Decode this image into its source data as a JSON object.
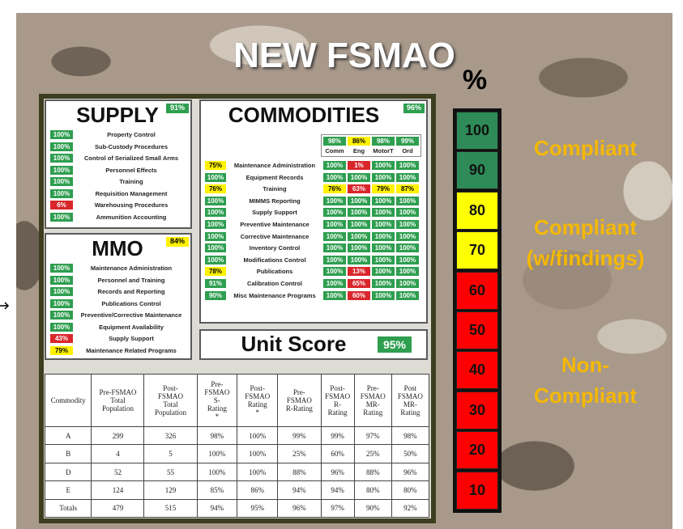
{
  "title": "NEW FSMAO",
  "percent_sign": "%",
  "supply": {
    "title": "SUPPLY",
    "score": "91%",
    "color": "green",
    "items": [
      {
        "score": "100%",
        "label": "Property Control",
        "color": "green"
      },
      {
        "score": "100%",
        "label": "Sub-Custody Procedures",
        "color": "green"
      },
      {
        "score": "100%",
        "label": "Control of Serialized Small Arms",
        "color": "green"
      },
      {
        "score": "100%",
        "label": "Personnel Effects",
        "color": "green"
      },
      {
        "score": "100%",
        "label": "Training",
        "color": "green"
      },
      {
        "score": "100%",
        "label": "Requisition Management",
        "color": "green"
      },
      {
        "score": "6%",
        "label": "Warehousing Procedures",
        "color": "red"
      },
      {
        "score": "100%",
        "label": "Ammunition Accounting",
        "color": "green"
      }
    ]
  },
  "mmo": {
    "title": "MMO",
    "score": "84%",
    "color": "yellow",
    "items": [
      {
        "score": "100%",
        "label": "Maintenance Administration",
        "color": "green"
      },
      {
        "score": "100%",
        "label": "Personnel and Training",
        "color": "green"
      },
      {
        "score": "100%",
        "label": "Records and Reporting",
        "color": "green"
      },
      {
        "score": "100%",
        "label": "Publications Control",
        "color": "green"
      },
      {
        "score": "100%",
        "label": "Preventive/Corrective Maintenance",
        "color": "green"
      },
      {
        "score": "100%",
        "label": "Equipment Availability",
        "color": "green"
      },
      {
        "score": "43%",
        "label": "Supply Support",
        "color": "red"
      },
      {
        "score": "79%",
        "label": "Maintenance Related Programs",
        "color": "yellow"
      }
    ]
  },
  "commodities": {
    "title": "COMMODITIES",
    "score": "96%",
    "color": "green",
    "columns": [
      {
        "score": "98%",
        "label": "Comm",
        "color": "green"
      },
      {
        "score": "86%",
        "label": "Eng",
        "color": "yellow"
      },
      {
        "score": "98%",
        "label": "MotorT",
        "color": "green"
      },
      {
        "score": "99%",
        "label": "Ord",
        "color": "green"
      }
    ],
    "rows": [
      {
        "score": "75%",
        "label": "Maintenance Administration",
        "color": "yellow",
        "values": [
          "100%",
          "1%",
          "100%",
          "100%"
        ],
        "colors": [
          "green",
          "red",
          "green",
          "green"
        ]
      },
      {
        "score": "100%",
        "label": "Equipment Records",
        "color": "green",
        "values": [
          "100%",
          "100%",
          "100%",
          "100%"
        ],
        "colors": [
          "green",
          "green",
          "green",
          "green"
        ]
      },
      {
        "score": "76%",
        "label": "Training",
        "color": "yellow",
        "values": [
          "76%",
          "63%",
          "79%",
          "87%"
        ],
        "colors": [
          "yellow",
          "red",
          "yellow",
          "yellow"
        ]
      },
      {
        "score": "100%",
        "label": "MIMMS Reporting",
        "color": "green",
        "values": [
          "100%",
          "100%",
          "100%",
          "100%"
        ],
        "colors": [
          "green",
          "green",
          "green",
          "green"
        ]
      },
      {
        "score": "100%",
        "label": "Supply Support",
        "color": "green",
        "values": [
          "100%",
          "100%",
          "100%",
          "100%"
        ],
        "colors": [
          "green",
          "green",
          "green",
          "green"
        ]
      },
      {
        "score": "100%",
        "label": "Preventive Maintenance",
        "color": "green",
        "values": [
          "100%",
          "100%",
          "100%",
          "100%"
        ],
        "colors": [
          "green",
          "green",
          "green",
          "green"
        ]
      },
      {
        "score": "100%",
        "label": "Corrective Maintenance",
        "color": "green",
        "values": [
          "100%",
          "100%",
          "100%",
          "100%"
        ],
        "colors": [
          "green",
          "green",
          "green",
          "green"
        ]
      },
      {
        "score": "100%",
        "label": "Inventory Control",
        "color": "green",
        "values": [
          "100%",
          "100%",
          "100%",
          "100%"
        ],
        "colors": [
          "green",
          "green",
          "green",
          "green"
        ]
      },
      {
        "score": "100%",
        "label": "Modifications Control",
        "color": "green",
        "values": [
          "100%",
          "100%",
          "100%",
          "100%"
        ],
        "colors": [
          "green",
          "green",
          "green",
          "green"
        ]
      },
      {
        "score": "78%",
        "label": "Publications",
        "color": "yellow",
        "values": [
          "100%",
          "13%",
          "100%",
          "100%"
        ],
        "colors": [
          "green",
          "red",
          "green",
          "green"
        ]
      },
      {
        "score": "91%",
        "label": "Calibration Control",
        "color": "green",
        "values": [
          "100%",
          "65%",
          "100%",
          "100%"
        ],
        "colors": [
          "green",
          "red",
          "green",
          "green"
        ]
      },
      {
        "score": "90%",
        "label": "Misc Maintenance Programs",
        "color": "green",
        "values": [
          "100%",
          "60%",
          "100%",
          "100%"
        ],
        "colors": [
          "green",
          "red",
          "green",
          "green"
        ]
      }
    ]
  },
  "unit_score": {
    "label": "Unit Score",
    "score": "95%",
    "color": "green"
  },
  "table": {
    "header": [
      "Commodity",
      "Pre-FSMAO\nTotal\nPopulation",
      "Post-\nFSMAO\nTotal\nPopulation",
      "Pre-\nFSMAO\nS-\nRating\n*",
      "Post-\nFSMAO\nRating\n*",
      "Pre-\nFSMAO\nR-Rating",
      "Post-\nFSMAO\nR-\nRating",
      "Pre-\nFSMAO\nMR-\nRating",
      "Post\nFSMAO\nMR-\nRating"
    ],
    "rows": [
      [
        "A",
        "299",
        "326",
        "98%",
        "100%",
        "99%",
        "99%",
        "97%",
        "98%"
      ],
      [
        "B",
        "4",
        "5",
        "100%",
        "100%",
        "25%",
        "60%",
        "25%",
        "50%"
      ],
      [
        "D",
        "52",
        "55",
        "100%",
        "100%",
        "88%",
        "96%",
        "88%",
        "96%"
      ],
      [
        "E",
        "124",
        "129",
        "85%",
        "86%",
        "94%",
        "94%",
        "80%",
        "80%"
      ],
      [
        "Totals",
        "479",
        "515",
        "94%",
        "95%",
        "96%",
        "97%",
        "90%",
        "92%"
      ]
    ]
  },
  "scale": {
    "levels": [
      {
        "label": "100",
        "color": "green"
      },
      {
        "label": "90",
        "color": "green"
      },
      {
        "label": "80",
        "color": "yellow"
      },
      {
        "label": "70",
        "color": "yellow"
      },
      {
        "label": "60",
        "color": "red"
      },
      {
        "label": "50",
        "color": "red"
      },
      {
        "label": "40",
        "color": "red"
      },
      {
        "label": "30",
        "color": "red"
      },
      {
        "label": "20",
        "color": "red"
      },
      {
        "label": "10",
        "color": "red"
      }
    ],
    "zones": [
      "Compliant",
      "Compliant\n(w/findings)",
      "Non-\nCompliant"
    ]
  }
}
